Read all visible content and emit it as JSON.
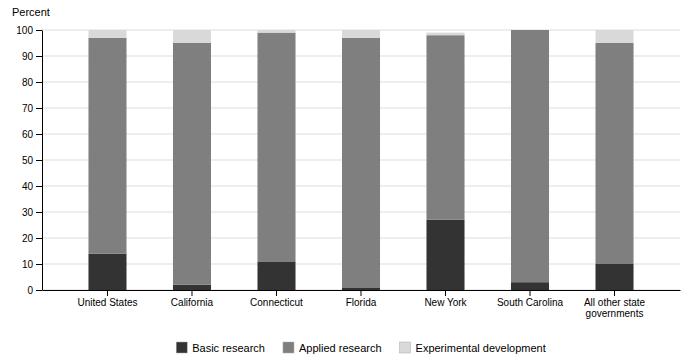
{
  "chart_data": {
    "type": "bar",
    "stacked": true,
    "ylabel": "Percent",
    "categories": [
      "United States",
      "California",
      "Connecticut",
      "Florida",
      "New York",
      "South Carolina",
      "All other state\ngovernments"
    ],
    "series": [
      {
        "name": "Basic research",
        "color": "#333333",
        "values": [
          14,
          2,
          11,
          1,
          27,
          3,
          10
        ]
      },
      {
        "name": "Applied research",
        "color": "#7f7f7f",
        "values": [
          83,
          93,
          88,
          96,
          71,
          97,
          85
        ]
      },
      {
        "name": "Experimental development",
        "color": "#d9d9d9",
        "values": [
          3,
          5,
          1,
          3,
          1,
          0,
          5
        ]
      }
    ],
    "ylim": [
      0,
      100
    ],
    "yticks": [
      0,
      10,
      20,
      30,
      40,
      50,
      60,
      70,
      80,
      90,
      100
    ],
    "grid": true,
    "legend": "bottom"
  }
}
